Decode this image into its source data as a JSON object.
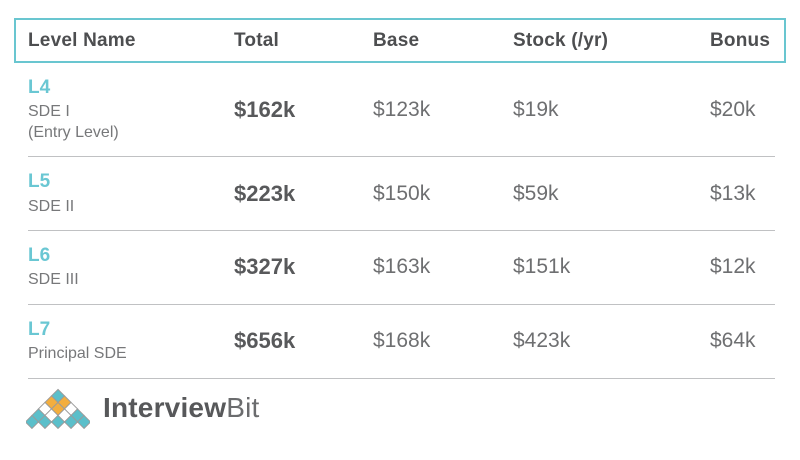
{
  "table": {
    "columns": [
      "Level Name",
      "Total",
      "Base",
      "Stock (/yr)",
      "Bonus"
    ],
    "rows": [
      {
        "level": "L4",
        "title": "SDE I",
        "subtitle": "(Entry Level)",
        "total": "$162k",
        "base": "$123k",
        "stock": "$19k",
        "bonus": "$20k"
      },
      {
        "level": "L5",
        "title": "SDE II",
        "subtitle": "",
        "total": "$223k",
        "base": "$150k",
        "stock": "$59k",
        "bonus": "$13k"
      },
      {
        "level": "L6",
        "title": "SDE III",
        "subtitle": "",
        "total": "$327k",
        "base": "$163k",
        "stock": "$151k",
        "bonus": "$12k"
      },
      {
        "level": "L7",
        "title": "Principal SDE",
        "subtitle": "",
        "total": "$656k",
        "base": "$168k",
        "stock": "$423k",
        "bonus": "$64k"
      }
    ]
  },
  "logo": {
    "text_primary": "Interview",
    "text_secondary": "Bit",
    "colors": {
      "teal": "#5bbfca",
      "orange": "#f3ae3e",
      "white": "#ffffff",
      "outline": "#9b9b9b"
    },
    "pyramid": [
      [
        "teal"
      ],
      [
        "orange",
        "orange"
      ],
      [
        "white",
        "orange",
        "white"
      ],
      [
        "teal",
        "white",
        "white",
        "teal"
      ],
      [
        "teal",
        "teal",
        "teal",
        "teal",
        "teal"
      ]
    ]
  },
  "colors": {
    "header_border": "#69c6d0",
    "level_accent": "#6ac7d3",
    "heading_text": "#4d4e50",
    "value_text": "#6e6f71",
    "separator": "#c0c1c3"
  }
}
